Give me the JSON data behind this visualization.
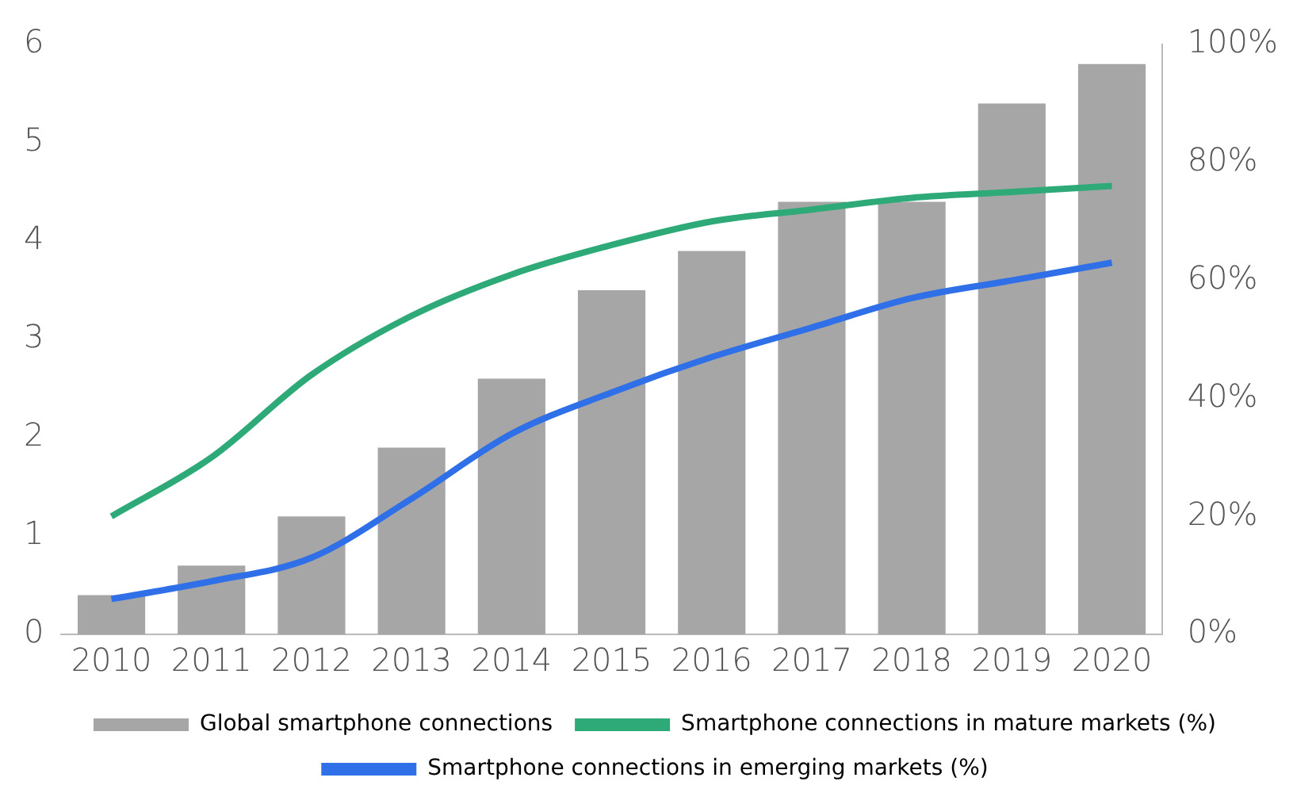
{
  "chart_data": {
    "type": "bar",
    "categories": [
      "2010",
      "2011",
      "2012",
      "2013",
      "2014",
      "2015",
      "2016",
      "2017",
      "2018",
      "2019",
      "2020"
    ],
    "series": [
      {
        "name": "Global smartphone connections",
        "color": "#a6a6a6",
        "values": [
          0.4,
          0.7,
          1.2,
          1.9,
          2.6,
          3.5,
          3.9,
          4.4,
          4.4,
          5.4,
          5.8
        ]
      },
      {
        "name": "Smartphone connections in mature markets (%)",
        "type": "line",
        "axis": "y2",
        "color": "#2eaa78",
        "values": [
          20,
          30,
          44,
          54,
          61,
          66,
          70,
          72,
          74,
          75,
          76
        ]
      },
      {
        "name": "Smartphone connections in emerging markets (%)",
        "type": "line",
        "axis": "y2",
        "color": "#2f6fe8",
        "values": [
          6,
          9,
          13,
          23,
          34,
          41,
          47,
          52,
          57,
          60,
          63
        ]
      }
    ],
    "ylim": [
      0,
      6
    ],
    "yticks": [
      0,
      1,
      2,
      3,
      4,
      5,
      6
    ],
    "y2lim": [
      0,
      100
    ],
    "y2ticks": [
      {
        "value": 0,
        "label": "0%"
      },
      {
        "value": 20,
        "label": "20%"
      },
      {
        "value": 40,
        "label": "40%"
      },
      {
        "value": 60,
        "label": "60%"
      },
      {
        "value": 80,
        "label": "80%"
      },
      {
        "value": 100,
        "label": "100%"
      }
    ],
    "grid": false,
    "legend": "bottom",
    "marker": "none",
    "line_style": "solid"
  }
}
